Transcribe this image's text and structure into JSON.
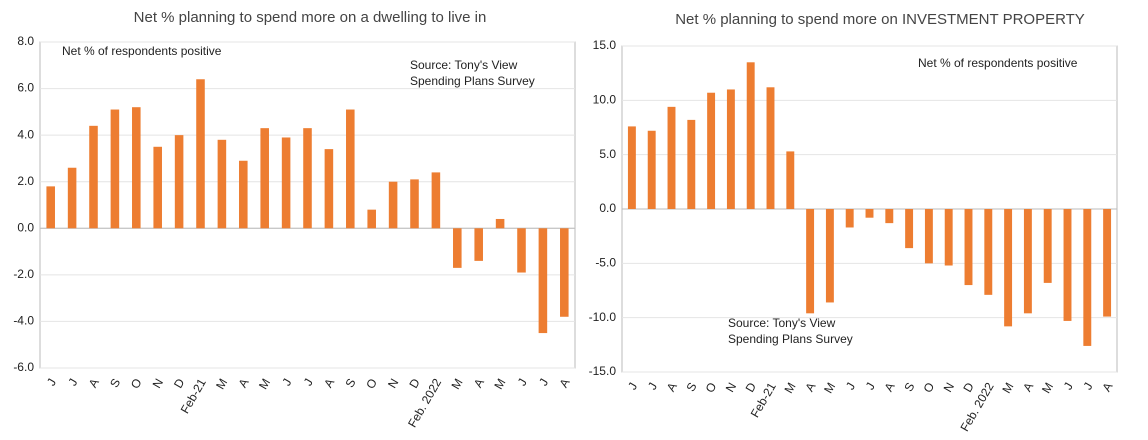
{
  "chart_data": [
    {
      "type": "bar",
      "title": "Net % planning to spend more on a dwelling to live in",
      "annotations": [
        "Net % of respondents positive",
        "Source: Tony's View",
        "Spending Plans Survey"
      ],
      "categories": [
        "J",
        "J",
        "A",
        "S",
        "O",
        "N",
        "D",
        "Feb-21",
        "M",
        "A",
        "M",
        "J",
        "J",
        "A",
        "S",
        "O",
        "N",
        "D",
        "Feb. 2022",
        "M",
        "A",
        "M",
        "J",
        "J",
        "A"
      ],
      "values": [
        1.8,
        2.6,
        4.4,
        5.1,
        5.2,
        3.5,
        4.0,
        6.4,
        3.8,
        2.9,
        4.3,
        3.9,
        4.3,
        3.4,
        5.1,
        0.8,
        2.0,
        2.1,
        2.4,
        -1.7,
        -1.4,
        0.4,
        -1.9,
        -4.5,
        -3.8
      ],
      "color": "#ed7d31",
      "ylim": [
        -6,
        8
      ],
      "yticks": [
        {
          "value": -6,
          "label": "-6.0"
        },
        {
          "value": -4,
          "label": "-4.0"
        },
        {
          "value": -2,
          "label": "-2.0"
        },
        {
          "value": 0,
          "label": "0.0"
        },
        {
          "value": 2,
          "label": "2.0"
        },
        {
          "value": 4,
          "label": "4.0"
        },
        {
          "value": 6,
          "label": "6.0"
        },
        {
          "value": 8,
          "label": "8.0"
        }
      ],
      "grid": true
    },
    {
      "type": "bar",
      "title": "Net % planning to spend more on INVESTMENT PROPERTY",
      "annotations": [
        "Net % of respondents positive",
        "Source: Tony's View",
        "Spending Plans Survey"
      ],
      "categories": [
        "J",
        "J",
        "A",
        "S",
        "O",
        "N",
        "D",
        "Feb-21",
        "M",
        "A",
        "M",
        "J",
        "J",
        "A",
        "S",
        "O",
        "N",
        "D",
        "Feb. 2022",
        "M",
        "A",
        "M",
        "J",
        "J",
        "A"
      ],
      "values": [
        7.6,
        7.2,
        9.4,
        8.2,
        10.7,
        11.0,
        13.5,
        11.2,
        5.3,
        -9.6,
        -8.6,
        -1.7,
        -0.8,
        -1.3,
        -3.6,
        -5.0,
        -5.2,
        -7.0,
        -7.9,
        -10.8,
        -9.6,
        -6.8,
        -10.3,
        -12.6,
        -9.9
      ],
      "color": "#ed7d31",
      "ylim": [
        -15,
        15
      ],
      "yticks": [
        {
          "value": -15,
          "label": "-15.0"
        },
        {
          "value": -10,
          "label": "-10.0"
        },
        {
          "value": -5,
          "label": "-5.0"
        },
        {
          "value": 0,
          "label": "0.0"
        },
        {
          "value": 5,
          "label": "5.0"
        },
        {
          "value": 10,
          "label": "10.0"
        },
        {
          "value": 15,
          "label": "15.0"
        }
      ],
      "grid": true
    }
  ]
}
